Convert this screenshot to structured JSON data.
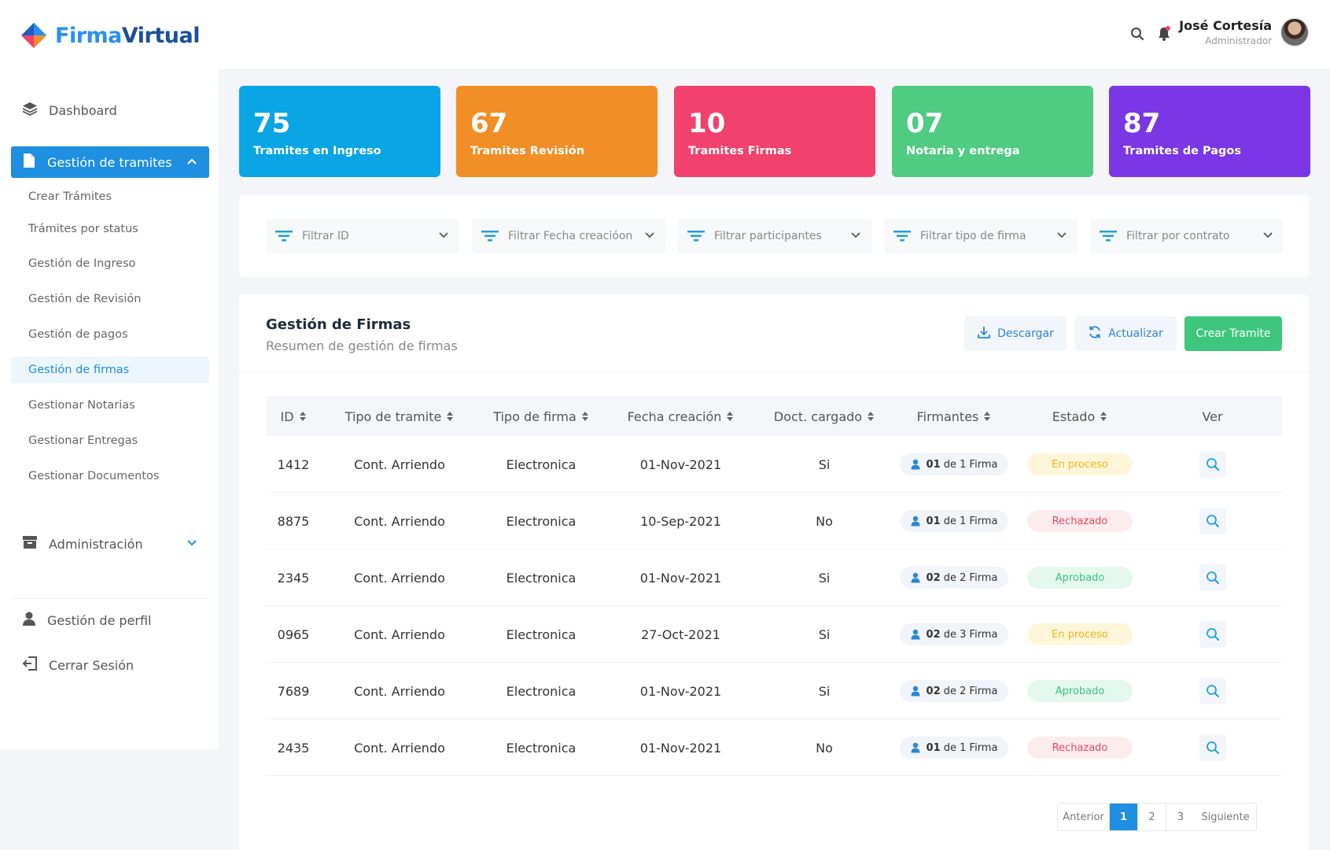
{
  "app": {
    "logo_part1": "Firma",
    "logo_part2": "Virtual"
  },
  "header": {
    "user_name": "José  Cortesía",
    "user_role": "Administrador",
    "icons": [
      "search-icon",
      "bell-icon"
    ]
  },
  "sidebar": {
    "dashboard": "Dashboard",
    "tramites_group": "Gestión de tramites",
    "sub_items": [
      "Crear Trámites",
      "Trámites por status",
      "Gestión de Ingreso",
      "Gestión de Revisión",
      "Gestión de pagos",
      "Gestión de firmas",
      "Gestionar Notarias",
      "Gestionar Entregas",
      "Gestionar Documentos"
    ],
    "current_sub_index": 5,
    "admin": "Administración",
    "perfil": "Gestión de perfil",
    "logout": "Cerrar Sesión"
  },
  "cards": [
    {
      "num": "75",
      "label": "Tramites en Ingreso",
      "color": "#0aa5e4"
    },
    {
      "num": "67",
      "label": "Tramites Revisión",
      "color": "#f18e26"
    },
    {
      "num": "10",
      "label": "Tramites Firmas",
      "color": "#f1416c"
    },
    {
      "num": "07",
      "label": "Notaria y entrega",
      "color": "#4fcb82"
    },
    {
      "num": "87",
      "label": "Tramites de Pagos",
      "color": "#7b36e5"
    }
  ],
  "filters": [
    "Filtrar ID",
    "Filtrar Fecha creacióon",
    "Filtrar participantes",
    "Filtrar tipo de firma",
    "Filtrar por contrato"
  ],
  "panel": {
    "title": "Gestión de Firmas",
    "subtitle": "Resumen de gestión de firmas",
    "btn_download": "Descargar",
    "btn_refresh": "Actualizar",
    "btn_create": "Crear Tramite"
  },
  "table": {
    "headers": [
      "ID",
      "Tipo de tramite",
      "Tipo de firma",
      "Fecha creación",
      "Doct. cargado",
      "Firmantes",
      "Estado",
      "Ver"
    ],
    "rows": [
      {
        "id": "1412",
        "tipo": "Cont. Arriendo",
        "firma": "Electronica",
        "fecha": "01-Nov-2021",
        "doc": "Si",
        "firm_num": "01",
        "firm_text": "de 1 Firma",
        "estado": "En proceso"
      },
      {
        "id": "8875",
        "tipo": "Cont. Arriendo",
        "firma": "Electronica",
        "fecha": "10-Sep-2021",
        "doc": "No",
        "firm_num": "01",
        "firm_text": "de 1 Firma",
        "estado": "Rechazado"
      },
      {
        "id": "2345",
        "tipo": "Cont. Arriendo",
        "firma": "Electronica",
        "fecha": "01-Nov-2021",
        "doc": "Si",
        "firm_num": "02",
        "firm_text": "de 2 Firma",
        "estado": "Aprobado"
      },
      {
        "id": "0965",
        "tipo": "Cont. Arriendo",
        "firma": "Electronica",
        "fecha": "27-Oct-2021",
        "doc": "Si",
        "firm_num": "02",
        "firm_text": "de 3 Firma",
        "estado": "En proceso"
      },
      {
        "id": "7689",
        "tipo": "Cont. Arriendo",
        "firma": "Electronica",
        "fecha": "01-Nov-2021",
        "doc": "Si",
        "firm_num": "02",
        "firm_text": "de 2 Firma",
        "estado": "Aprobado"
      },
      {
        "id": "2435",
        "tipo": "Cont. Arriendo",
        "firma": "Electronica",
        "fecha": "01-Nov-2021",
        "doc": "No",
        "firm_num": "01",
        "firm_text": "de 1 Firma",
        "estado": "Rechazado"
      }
    ]
  },
  "status_styles": {
    "En proceso": {
      "bg": "#fff6d9",
      "fg": "#f0b41b"
    },
    "Rechazado": {
      "bg": "#fdecee",
      "fg": "#e5485c"
    },
    "Aprobado": {
      "bg": "#e4f8ee",
      "fg": "#3cc47c"
    }
  },
  "pagination": {
    "prev": "Anterior",
    "pages": [
      "1",
      "2",
      "3"
    ],
    "current": "1",
    "next": "Siguiente"
  },
  "colors": {
    "primary": "#1e8fe1",
    "accent_green": "#3ec67e"
  }
}
